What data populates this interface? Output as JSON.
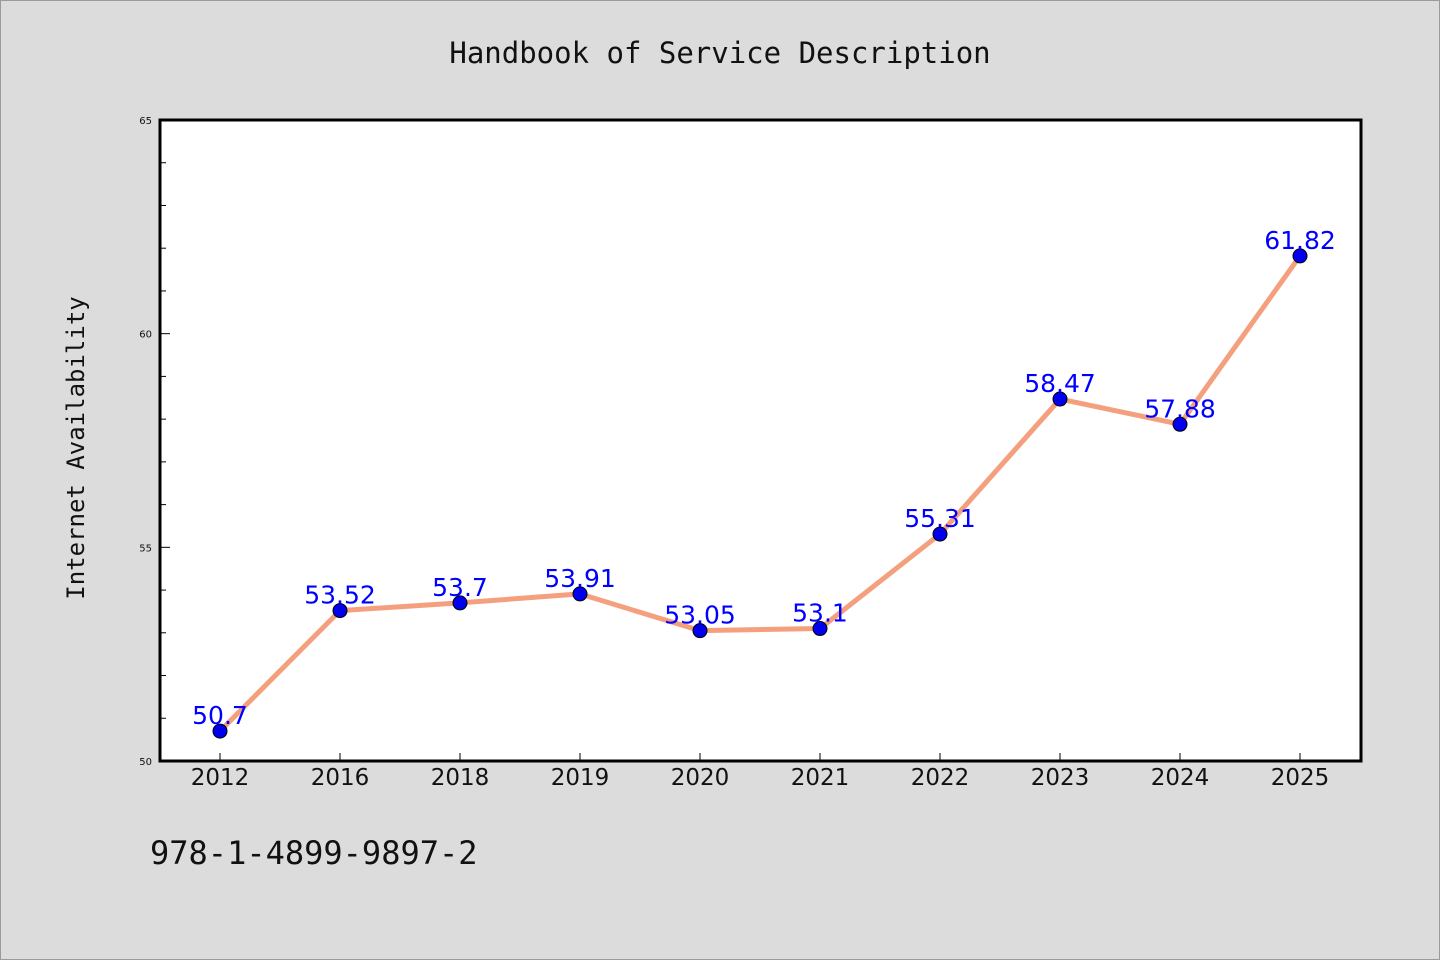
{
  "chart_data": {
    "type": "line",
    "title": "Handbook of Service Description",
    "xlabel": "",
    "ylabel": "Internet Availability",
    "categories": [
      "2012",
      "2016",
      "2018",
      "2019",
      "2020",
      "2021",
      "2022",
      "2023",
      "2024",
      "2025"
    ],
    "series": [
      {
        "values": [
          50.7,
          53.52,
          53.7,
          53.91,
          53.05,
          53.1,
          55.31,
          58.47,
          57.88,
          61.82
        ],
        "data_labels": [
          "50.7",
          "53.52",
          "53.7",
          "53.91",
          "53.05",
          "53.1",
          "55.31",
          "58.47",
          "57.88",
          "61.82"
        ]
      }
    ],
    "ylim": [
      50,
      65
    ],
    "y_major_ticks": [
      50,
      55,
      60,
      65
    ],
    "y_minor_step": 1,
    "grid": false,
    "line_color": "#f4a07e",
    "marker_color": "#0000ee",
    "label_color": "#0000ff"
  },
  "footer": {
    "isbn": "978-1-4899-9897-2"
  }
}
